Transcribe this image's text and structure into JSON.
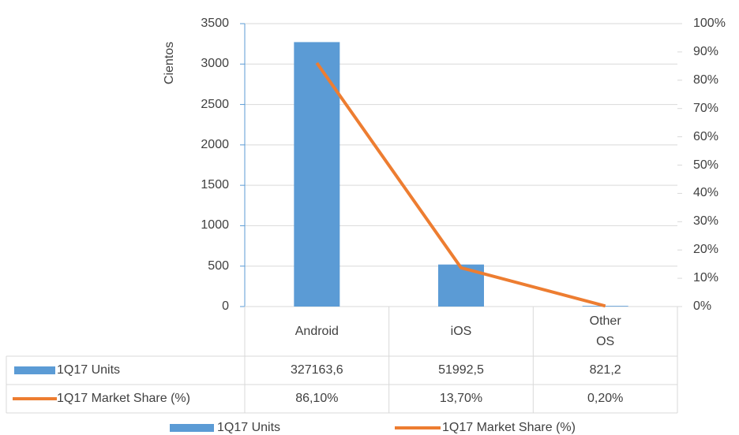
{
  "chart_data": {
    "type": "bar",
    "y_axis_label": "Cientos",
    "categories": [
      "Android",
      "iOS",
      "Other OS"
    ],
    "series": [
      {
        "name": "1Q17 Units",
        "type": "bar",
        "color": "#5b9bd5",
        "values": [
          3271.636,
          519.925,
          8.212
        ],
        "value_labels": [
          "327163,6",
          "51992,5",
          "821,2"
        ]
      },
      {
        "name": "1Q17 Market Share (%)",
        "type": "line",
        "axis": "y2",
        "color": "#ed7d31",
        "values": [
          86.1,
          13.7,
          0.2
        ],
        "value_labels": [
          "86,10%",
          "13,70%",
          "0,20%"
        ]
      }
    ],
    "ylim": [
      0,
      3500
    ],
    "yticks": [
      0,
      500,
      1000,
      1500,
      2000,
      2500,
      3000,
      3500
    ],
    "y2lim": [
      0,
      100
    ],
    "y2ticks": [
      {
        "value": 0,
        "label": "0%"
      },
      {
        "value": 10,
        "label": "10%"
      },
      {
        "value": 20,
        "label": "20%"
      },
      {
        "value": 30,
        "label": "30%"
      },
      {
        "value": 40,
        "label": "40%"
      },
      {
        "value": 50,
        "label": "50%"
      },
      {
        "value": 60,
        "label": "60%"
      },
      {
        "value": 70,
        "label": "70%"
      },
      {
        "value": 80,
        "label": "80%"
      },
      {
        "value": 90,
        "label": "90%"
      },
      {
        "value": 100,
        "label": "100%"
      }
    ],
    "grid": true,
    "legend": "bottom"
  }
}
